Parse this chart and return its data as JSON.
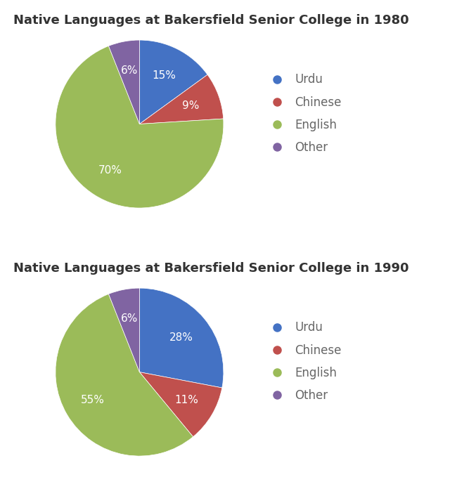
{
  "charts": [
    {
      "title": "Native Languages at Bakersfield Senior College in 1980",
      "labels": [
        "Urdu",
        "Chinese",
        "English",
        "Other"
      ],
      "values": [
        15,
        9,
        70,
        6
      ],
      "colors": [
        "#4472C4",
        "#C0504D",
        "#9BBB59",
        "#8064A2"
      ]
    },
    {
      "title": "Native Languages at Bakersfield Senior College in 1990",
      "labels": [
        "Urdu",
        "Chinese",
        "English",
        "Other"
      ],
      "values": [
        28,
        11,
        55,
        6
      ],
      "colors": [
        "#4472C4",
        "#C0504D",
        "#9BBB59",
        "#8064A2"
      ]
    }
  ],
  "legend_labels": [
    "Urdu",
    "Chinese",
    "English",
    "Other"
  ],
  "legend_colors": [
    "#4472C4",
    "#C0504D",
    "#9BBB59",
    "#8064A2"
  ],
  "title_fontsize": 13,
  "label_fontsize": 11,
  "legend_fontsize": 12,
  "legend_text_color": "#666666",
  "background_color": "#FFFFFF",
  "text_color": "#333333",
  "pct_text_color": "#FFFFFF"
}
